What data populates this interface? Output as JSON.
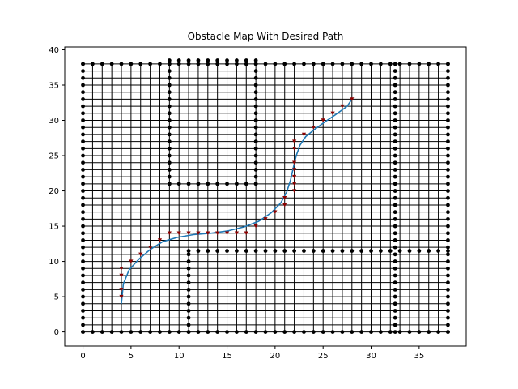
{
  "chart_data": {
    "type": "scatter",
    "title": "Obstacle Map With Desired Path",
    "xlabel": "",
    "ylabel": "",
    "xlim": [
      -1.9,
      39.9
    ],
    "ylim": [
      -2.0,
      40.4
    ],
    "xticks": [
      0,
      5,
      10,
      15,
      20,
      25,
      30,
      35
    ],
    "yticks": [
      0,
      5,
      10,
      15,
      20,
      25,
      30,
      35,
      40
    ],
    "grid": false,
    "legend": "none",
    "grid_extent": {
      "x": [
        0,
        38
      ],
      "y": [
        0,
        38
      ]
    },
    "obstacles": {
      "color": "#000000",
      "segments": [
        {
          "x0": 0,
          "y0": 0,
          "x1": 38,
          "y1": 0
        },
        {
          "x0": 0,
          "y0": 38,
          "x1": 38,
          "y1": 38
        },
        {
          "x0": 0,
          "y0": 0,
          "x1": 0,
          "y1": 38
        },
        {
          "x0": 38,
          "y0": 0,
          "x1": 38,
          "y1": 38
        },
        {
          "x0": 9,
          "y0": 21,
          "x1": 9,
          "y1": 38
        },
        {
          "x0": 9,
          "y0": 21,
          "x1": 18,
          "y1": 21
        },
        {
          "x0": 18,
          "y0": 21,
          "x1": 18,
          "y1": 38
        },
        {
          "x0": 9,
          "y0": 38.5,
          "x1": 18,
          "y1": 38.5
        },
        {
          "x0": 11,
          "y0": 0,
          "x1": 11,
          "y1": 11
        },
        {
          "x0": 11,
          "y0": 11.5,
          "x1": 38,
          "y1": 11.5
        },
        {
          "x0": 32.5,
          "y0": 0,
          "x1": 32.5,
          "y1": 38
        }
      ]
    },
    "waypoints": {
      "color": "#8b0000",
      "x": [
        4,
        4,
        4,
        4,
        5,
        6,
        7,
        8,
        9,
        10,
        11,
        12,
        13,
        14,
        15,
        16,
        17,
        18,
        19,
        20,
        21,
        21,
        22,
        22,
        22,
        22,
        22,
        22,
        22,
        23,
        24,
        25,
        26,
        27,
        28
      ],
      "y": [
        5,
        6,
        8,
        9,
        10,
        11,
        12,
        13,
        14,
        14,
        14,
        14,
        14,
        14,
        14,
        14,
        14,
        15,
        16,
        17,
        18,
        19,
        20,
        21,
        22,
        23,
        24,
        26,
        27,
        28,
        29,
        30,
        31,
        32,
        33
      ]
    },
    "path": {
      "color": "#1f77b4",
      "x": [
        4,
        4.2,
        4.8,
        5.8,
        7,
        8.3,
        9.8,
        11.5,
        13.3,
        15,
        16.8,
        18.3,
        19.6,
        20.6,
        21.2,
        21.6,
        21.9,
        22.2,
        22.6,
        23.2,
        24.1,
        25.1,
        26.3,
        27.5,
        28
      ],
      "y": [
        4,
        6.8,
        8.8,
        10.3,
        11.7,
        12.8,
        13.4,
        13.8,
        14,
        14.3,
        14.9,
        15.7,
        16.9,
        18.3,
        19.8,
        21.5,
        23.3,
        25,
        26.5,
        27.7,
        28.7,
        29.7,
        30.8,
        32,
        33
      ]
    }
  }
}
